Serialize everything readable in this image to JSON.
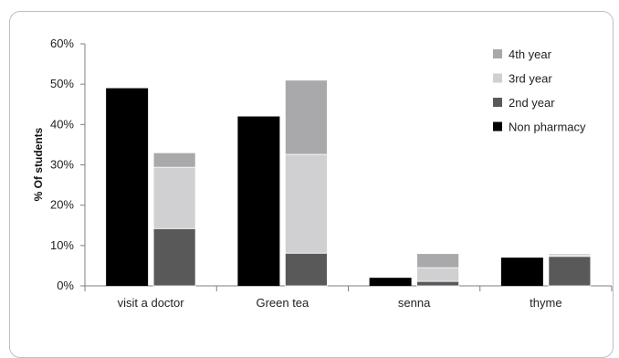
{
  "chart_data": {
    "type": "bar",
    "title": "",
    "xlabel": "",
    "ylabel": "% Of students",
    "ylim": [
      0,
      60
    ],
    "yticks": [
      "0%",
      "10%",
      "20%",
      "30%",
      "40%",
      "50%",
      "60%"
    ],
    "categories": [
      "visit a doctor",
      "Green tea",
      "senna",
      "thyme"
    ],
    "grid": false,
    "legend_position": "top-right",
    "groups": [
      {
        "name": "Non pharmacy",
        "color": "#000000",
        "values": [
          49,
          42,
          2,
          7
        ]
      },
      {
        "stacked_series": [
          {
            "name": "2nd year",
            "color": "#595959",
            "values": [
              14.2,
              8.1,
              1.1,
              7.3
            ]
          },
          {
            "name": "3rd year",
            "color": "#d0cfd1",
            "values": [
              15.2,
              24.5,
              3.4,
              0.4
            ]
          },
          {
            "name": "4th year",
            "color": "#a9a8aa",
            "values": [
              3.6,
              18.4,
              3.5,
              0.3
            ]
          }
        ]
      }
    ],
    "legend": [
      "4th year",
      "3rd year",
      "2nd year",
      "Non pharmacy"
    ]
  }
}
